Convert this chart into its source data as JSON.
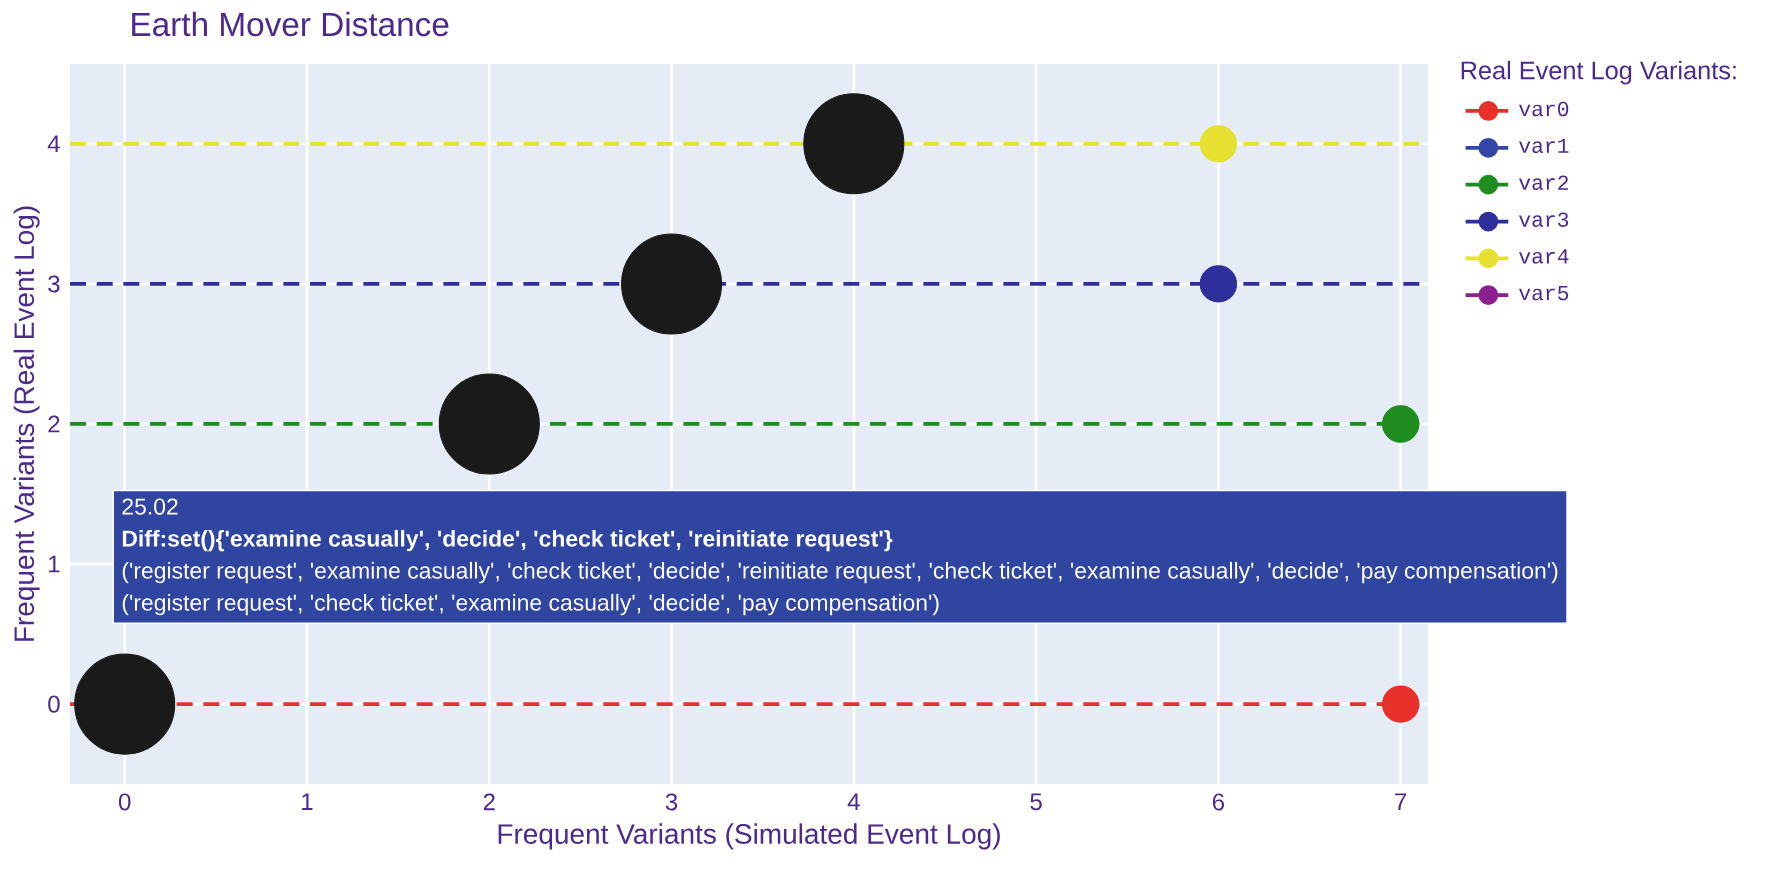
{
  "chart_data": {
    "type": "scatter",
    "title": "Earth Mover Distance",
    "xlabel": "Frequent Variants (Simulated Event Log)",
    "ylabel": "Frequent Variants (Real Event Log)",
    "legend_title": "Real Event Log Variants:",
    "legend": "top right",
    "grid": true,
    "marker": "circle",
    "line_style": "dashed",
    "xlim": [
      -0.3,
      7.15
    ],
    "ylim": [
      -0.57,
      4.57
    ],
    "xticks": [
      0,
      1,
      2,
      3,
      4,
      5,
      6,
      7
    ],
    "yticks": [
      0,
      1,
      2,
      3,
      4
    ],
    "series": [
      {
        "type": "bubble",
        "color": "#1a1a1a",
        "x": [
          0,
          2,
          3,
          4
        ],
        "values": [
          0,
          2,
          3,
          4
        ],
        "sizes": [
          1,
          1,
          1,
          1
        ]
      },
      {
        "name": "var0",
        "color": "#e8312a",
        "x": [
          7
        ],
        "values": [
          0
        ]
      },
      {
        "name": "var1",
        "color": "#3345a5"
      },
      {
        "name": "var2",
        "color": "#1e8c1e",
        "x": [
          7
        ],
        "values": [
          2
        ]
      },
      {
        "name": "var3",
        "color": "#2f2f9c",
        "x": [
          6
        ],
        "values": [
          3
        ]
      },
      {
        "name": "var4",
        "color": "#e6e030",
        "x": [
          6
        ],
        "values": [
          4
        ]
      },
      {
        "name": "var5",
        "color": "#8e1f8e"
      }
    ],
    "ref_lines": [
      {
        "axis": "y",
        "value": 0,
        "color": "#e8312a",
        "line_style": "dashed"
      },
      {
        "axis": "y",
        "value": 2,
        "color": "#1e8c1e",
        "line_style": "dashed"
      },
      {
        "axis": "y",
        "value": 3,
        "color": "#2f2f9c",
        "line_style": "dashed"
      },
      {
        "axis": "y",
        "value": 4,
        "color": "#e6e030",
        "line_style": "dashed"
      }
    ],
    "annotations": [
      "25.02",
      "Diff:set(){'examine casually', 'decide', 'check ticket', 'reinitiate request'}",
      "('register request', 'examine casually', 'check ticket', 'decide', 'reinitiate request', 'check ticket', 'examine casually', 'decide', 'pay compensation')",
      "('register request', 'check ticket', 'examine casually', 'decide', 'pay compensation')"
    ]
  }
}
